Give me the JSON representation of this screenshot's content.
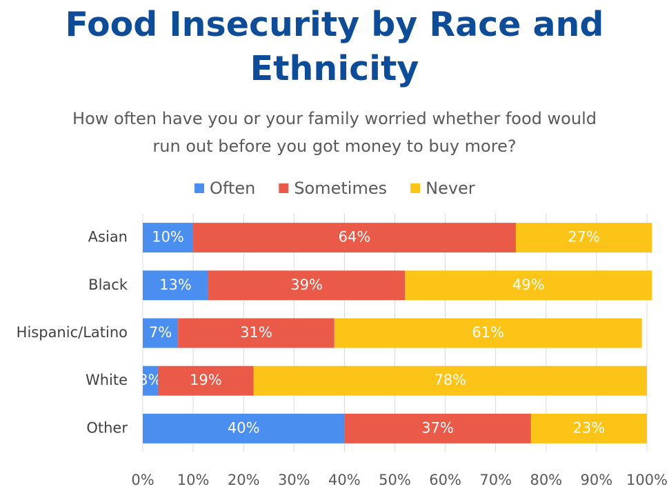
{
  "chart_data": {
    "type": "stacked_bar_horizontal",
    "title": "Food Insecurity by Race and Ethnicity",
    "subtitle": "How often have you or your family worried whether food would run out before you got money to buy more?",
    "categories": [
      "Asian",
      "Black",
      "Hispanic/Latino",
      "White",
      "Other"
    ],
    "series": [
      {
        "name": "Often",
        "color": "#4a8ff0",
        "values": [
          10,
          13,
          7,
          3,
          40
        ],
        "value_labels": [
          "10%",
          "13%",
          "7%",
          "3%",
          "40%"
        ]
      },
      {
        "name": "Sometimes",
        "color": "#ea5a48",
        "values": [
          64,
          39,
          31,
          19,
          37
        ],
        "value_labels": [
          "64%",
          "39%",
          "31%",
          "19%",
          "37%"
        ]
      },
      {
        "name": "Never",
        "color": "#fcc416",
        "values": [
          27,
          49,
          61,
          78,
          23
        ],
        "value_labels": [
          "27%",
          "49%",
          "61%",
          "78%",
          "23%"
        ]
      }
    ],
    "xlim": [
      0,
      100
    ],
    "xticks": [
      {
        "value": 0,
        "label": "0%"
      },
      {
        "value": 10,
        "label": "10%"
      },
      {
        "value": 20,
        "label": "20%"
      },
      {
        "value": 30,
        "label": "30%"
      },
      {
        "value": 40,
        "label": "40%"
      },
      {
        "value": 50,
        "label": "50%"
      },
      {
        "value": 60,
        "label": "60%"
      },
      {
        "value": 70,
        "label": "70%"
      },
      {
        "value": 80,
        "label": "80%"
      },
      {
        "value": 90,
        "label": "90%"
      },
      {
        "value": 100,
        "label": "100%"
      }
    ],
    "grid": true,
    "legend": "top"
  }
}
